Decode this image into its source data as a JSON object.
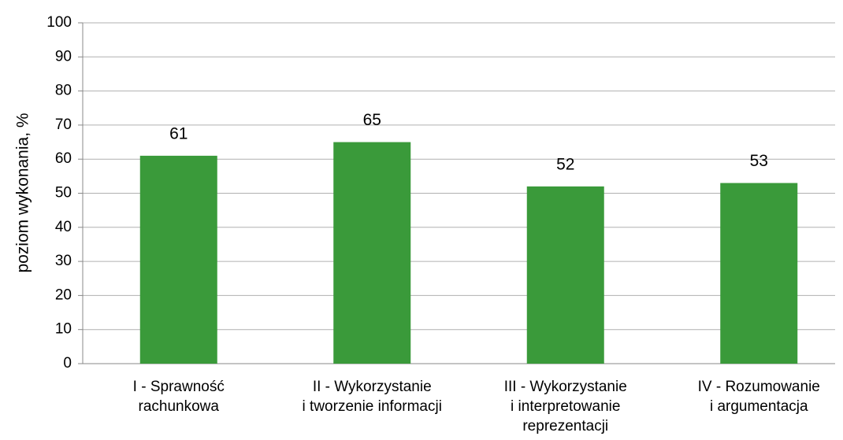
{
  "chart_data": {
    "type": "bar",
    "y_label": "poziom wykonania, %",
    "categories": [
      "I - Sprawność\nrachunkowa",
      "II - Wykorzystanie\ni tworzenie informacji",
      "III - Wykorzystanie\ni interpretowanie\nreprezentacji",
      "IV - Rozumowanie\ni argumentacja"
    ],
    "values": [
      61,
      65,
      52,
      53
    ],
    "color": "#3a9a3a",
    "ylim": [
      0,
      100
    ],
    "yticks": [
      0,
      10,
      20,
      30,
      40,
      50,
      60,
      70,
      80,
      90,
      100
    ],
    "grid": true
  }
}
